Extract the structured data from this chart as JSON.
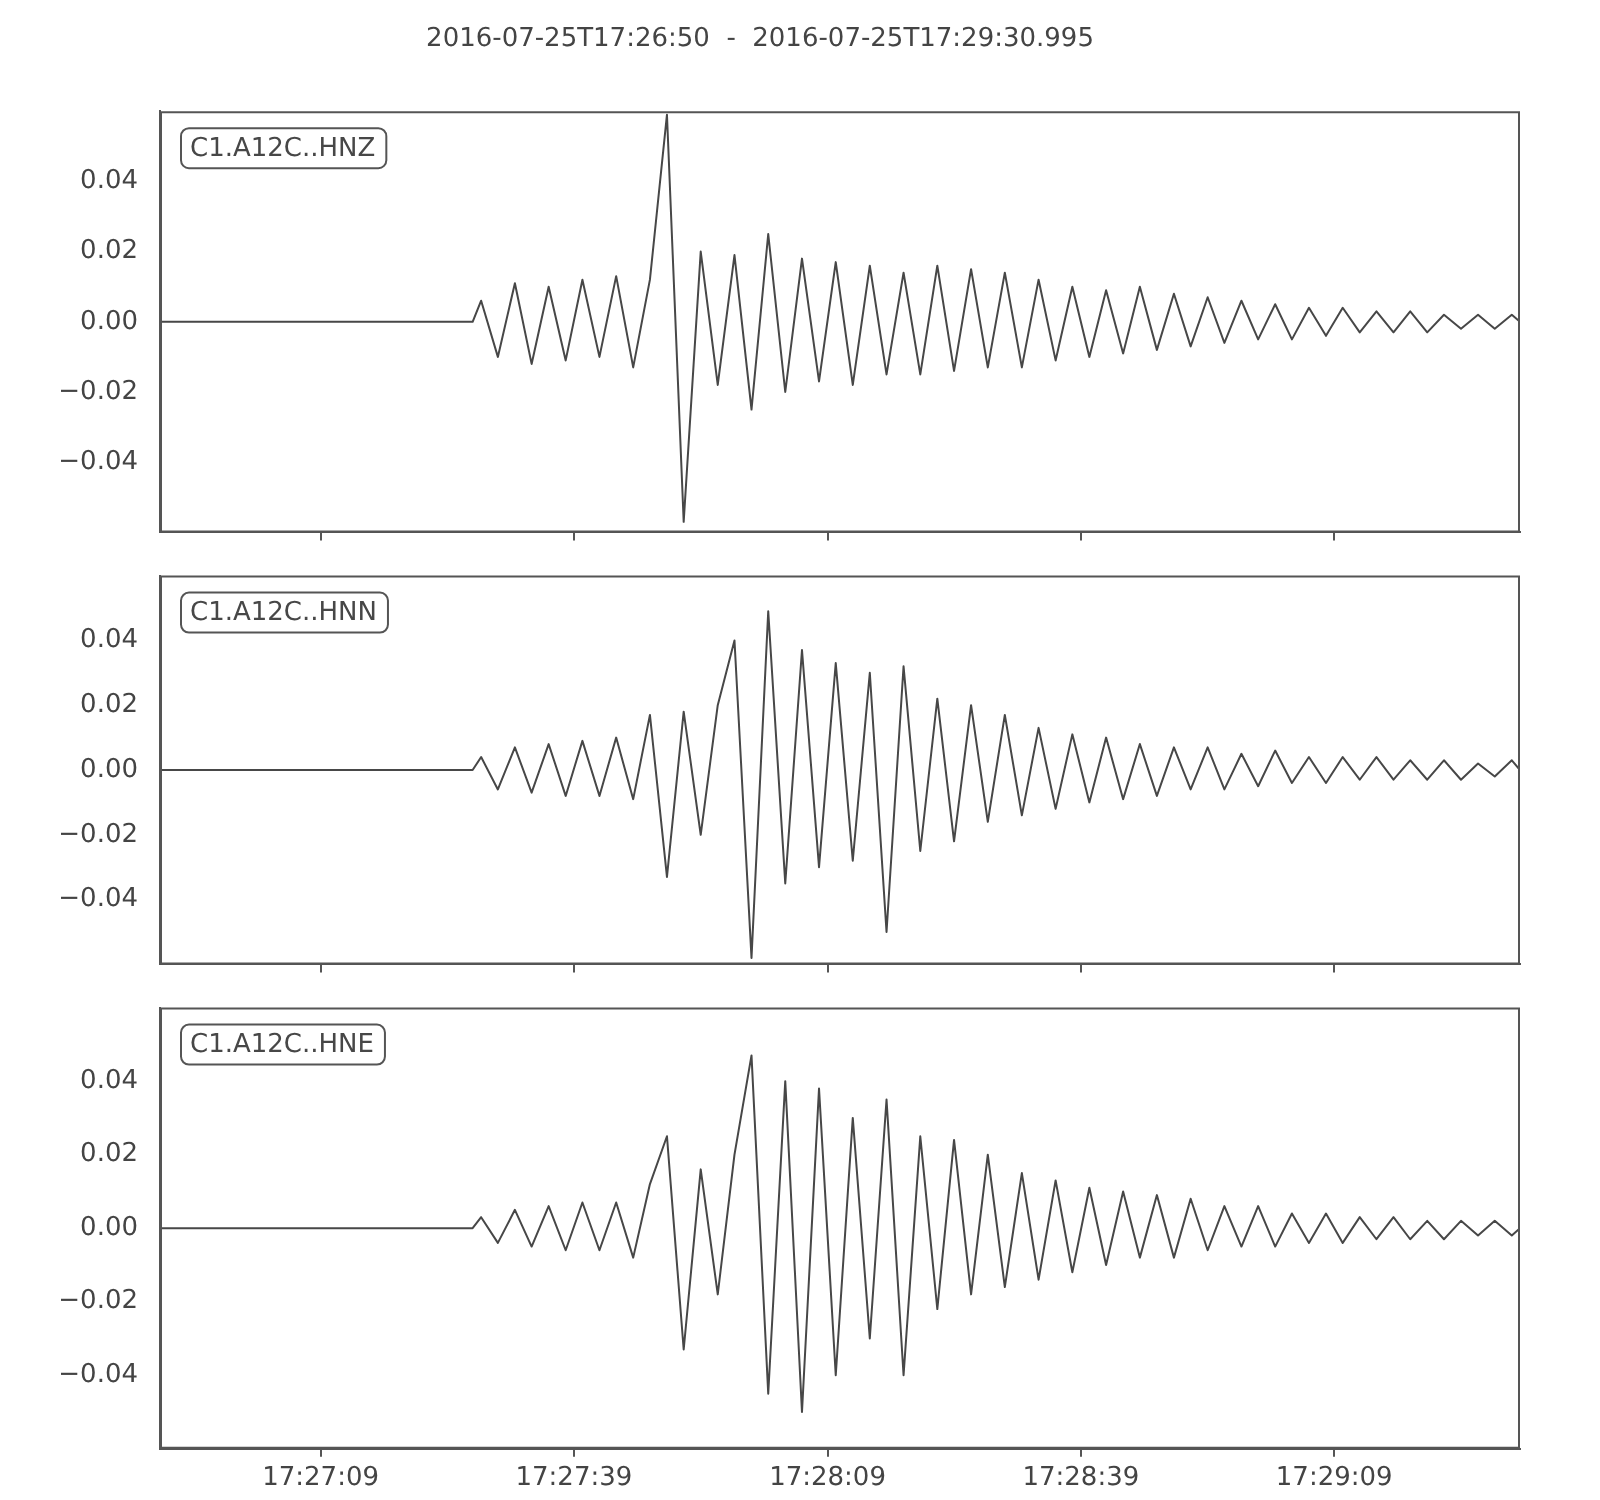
{
  "chart_data": [
    {
      "type": "line",
      "title": "2016-07-25T17:26:50  -  2016-07-25T17:29:30.995",
      "legend": "top left",
      "tick_labels": "y",
      "x": [
        17.44722,
        17.4575,
        17.45778,
        17.45833,
        17.45889,
        17.45944,
        17.46,
        17.46056,
        17.46111,
        17.46167,
        17.46222,
        17.46278,
        17.46333,
        17.46389,
        17.46444,
        17.465,
        17.46556,
        17.46611,
        17.46667,
        17.46722,
        17.46778,
        17.46833,
        17.46889,
        17.46944,
        17.47,
        17.47056,
        17.47111,
        17.47167,
        17.47222,
        17.47278,
        17.47333,
        17.47389,
        17.47444,
        17.475,
        17.47556,
        17.47611,
        17.47667,
        17.47722,
        17.47778,
        17.47833,
        17.47889,
        17.47944,
        17.48,
        17.48056,
        17.48111,
        17.48167,
        17.48222,
        17.48278,
        17.48333,
        17.48389,
        17.48444,
        17.485,
        17.48556,
        17.48611,
        17.48667,
        17.48722,
        17.48778,
        17.48833,
        17.48889,
        17.48944,
        17.49,
        17.49056,
        17.49111,
        17.49167,
        17.49194
      ],
      "xticks": [
        {
          "value": 17.4525,
          "label": null
        },
        {
          "value": 17.46083,
          "label": null
        },
        {
          "value": 17.46917,
          "label": null
        },
        {
          "value": 17.4775,
          "label": null
        },
        {
          "value": 17.48583,
          "label": null
        }
      ],
      "series": [
        {
          "name": "C1.A12C..HNZ",
          "color": "#474747",
          "values": [
            0,
            0,
            0.006,
            -0.01,
            0.011,
            -0.012,
            0.01,
            -0.011,
            0.012,
            -0.01,
            0.013,
            -0.013,
            0.012,
            0.059,
            -0.057,
            0.02,
            -0.018,
            0.019,
            -0.025,
            0.025,
            -0.02,
            0.018,
            -0.017,
            0.017,
            -0.018,
            0.016,
            -0.015,
            0.014,
            -0.015,
            0.016,
            -0.014,
            0.015,
            -0.013,
            0.014,
            -0.013,
            0.012,
            -0.011,
            0.01,
            -0.01,
            0.009,
            -0.009,
            0.01,
            -0.008,
            0.008,
            -0.007,
            0.007,
            -0.006,
            0.006,
            -0.005,
            0.005,
            -0.005,
            0.004,
            -0.004,
            0.004,
            -0.003,
            0.003,
            -0.003,
            0.003,
            -0.003,
            0.002,
            -0.002,
            0.002,
            -0.002,
            0.002,
            0
          ]
        }
      ],
      "xlim": [
        17.44722,
        17.49194
      ],
      "ylim": [
        -0.06,
        0.06
      ],
      "yticks": [
        {
          "value": -0.04,
          "label": "−0.04"
        },
        {
          "value": -0.02,
          "label": "−0.02"
        },
        {
          "value": 0,
          "label": "0.00"
        },
        {
          "value": 0.02,
          "label": "0.02"
        },
        {
          "value": 0.04,
          "label": "0.04"
        }
      ]
    },
    {
      "type": "line",
      "legend": "top left",
      "tick_labels": "y",
      "x": [
        17.44722,
        17.4575,
        17.45778,
        17.45833,
        17.45889,
        17.45944,
        17.46,
        17.46056,
        17.46111,
        17.46167,
        17.46222,
        17.46278,
        17.46333,
        17.46389,
        17.46444,
        17.465,
        17.46556,
        17.46611,
        17.46667,
        17.46722,
        17.46778,
        17.46833,
        17.46889,
        17.46944,
        17.47,
        17.47056,
        17.47111,
        17.47167,
        17.47222,
        17.47278,
        17.47333,
        17.47389,
        17.47444,
        17.475,
        17.47556,
        17.47611,
        17.47667,
        17.47722,
        17.47778,
        17.47833,
        17.47889,
        17.47944,
        17.48,
        17.48056,
        17.48111,
        17.48167,
        17.48222,
        17.48278,
        17.48333,
        17.48389,
        17.48444,
        17.485,
        17.48556,
        17.48611,
        17.48667,
        17.48722,
        17.48778,
        17.48833,
        17.48889,
        17.48944,
        17.49,
        17.49056,
        17.49111,
        17.49167,
        17.49194
      ],
      "xticks": [
        {
          "value": 17.4525,
          "label": null
        },
        {
          "value": 17.46083,
          "label": null
        },
        {
          "value": 17.46917,
          "label": null
        },
        {
          "value": 17.4775,
          "label": null
        },
        {
          "value": 17.48583,
          "label": null
        }
      ],
      "series": [
        {
          "name": "C1.A12C..HNN",
          "color": "#474747",
          "values": [
            0,
            0,
            0.004,
            -0.006,
            0.007,
            -0.007,
            0.008,
            -0.008,
            0.009,
            -0.008,
            0.01,
            -0.009,
            0.017,
            -0.033,
            0.018,
            -0.02,
            0.02,
            0.04,
            -0.058,
            0.049,
            -0.035,
            0.037,
            -0.03,
            0.033,
            -0.028,
            0.03,
            -0.05,
            0.032,
            -0.025,
            0.022,
            -0.022,
            0.02,
            -0.016,
            0.017,
            -0.014,
            0.013,
            -0.012,
            0.011,
            -0.01,
            0.01,
            -0.009,
            0.008,
            -0.008,
            0.007,
            -0.006,
            0.007,
            -0.006,
            0.005,
            -0.005,
            0.006,
            -0.004,
            0.004,
            -0.004,
            0.004,
            -0.003,
            0.004,
            -0.003,
            0.003,
            -0.003,
            0.003,
            -0.003,
            0.002,
            -0.002,
            0.003,
            0
          ]
        }
      ],
      "xlim": [
        17.44722,
        17.49194
      ],
      "ylim": [
        -0.06,
        0.06
      ],
      "yticks": [
        {
          "value": -0.04,
          "label": "−0.04"
        },
        {
          "value": -0.02,
          "label": "−0.02"
        },
        {
          "value": 0,
          "label": "0.00"
        },
        {
          "value": 0.02,
          "label": "0.02"
        },
        {
          "value": 0.04,
          "label": "0.04"
        }
      ]
    },
    {
      "type": "line",
      "legend": "top left",
      "x": [
        17.44722,
        17.4575,
        17.45778,
        17.45833,
        17.45889,
        17.45944,
        17.46,
        17.46056,
        17.46111,
        17.46167,
        17.46222,
        17.46278,
        17.46333,
        17.46389,
        17.46444,
        17.465,
        17.46556,
        17.46611,
        17.46667,
        17.46722,
        17.46778,
        17.46833,
        17.46889,
        17.46944,
        17.47,
        17.47056,
        17.47111,
        17.47167,
        17.47222,
        17.47278,
        17.47333,
        17.47389,
        17.47444,
        17.475,
        17.47556,
        17.47611,
        17.47667,
        17.47722,
        17.47778,
        17.47833,
        17.47889,
        17.47944,
        17.48,
        17.48056,
        17.48111,
        17.48167,
        17.48222,
        17.48278,
        17.48333,
        17.48389,
        17.48444,
        17.485,
        17.48556,
        17.48611,
        17.48667,
        17.48722,
        17.48778,
        17.48833,
        17.48889,
        17.48944,
        17.49,
        17.49056,
        17.49111,
        17.49167,
        17.49194
      ],
      "series": [
        {
          "name": "C1.A12C..HNE",
          "color": "#474747",
          "values": [
            0,
            0,
            0.003,
            -0.004,
            0.005,
            -0.005,
            0.006,
            -0.006,
            0.007,
            -0.006,
            0.007,
            -0.008,
            0.012,
            0.025,
            -0.033,
            0.016,
            -0.018,
            0.02,
            0.047,
            -0.045,
            0.04,
            -0.05,
            0.038,
            -0.04,
            0.03,
            -0.03,
            0.035,
            -0.04,
            0.025,
            -0.022,
            0.024,
            -0.018,
            0.02,
            -0.016,
            0.015,
            -0.014,
            0.013,
            -0.012,
            0.011,
            -0.01,
            0.01,
            -0.008,
            0.009,
            -0.008,
            0.008,
            -0.006,
            0.006,
            -0.005,
            0.006,
            -0.005,
            0.004,
            -0.004,
            0.004,
            -0.004,
            0.003,
            -0.003,
            0.003,
            -0.003,
            0.002,
            -0.003,
            0.002,
            -0.002,
            0.002,
            -0.002,
            0
          ]
        }
      ],
      "xlim": [
        17.44722,
        17.49194
      ],
      "xticks": [
        {
          "value": 17.4525,
          "label": "17:27:09"
        },
        {
          "value": 17.46083,
          "label": "17:27:39"
        },
        {
          "value": 17.46917,
          "label": "17:28:09"
        },
        {
          "value": 17.4775,
          "label": "17:28:39"
        },
        {
          "value": 17.48583,
          "label": "17:29:09"
        }
      ],
      "ylim": [
        -0.06,
        0.06
      ],
      "yticks": [
        {
          "value": -0.04,
          "label": "−0.04"
        },
        {
          "value": -0.02,
          "label": "−0.02"
        },
        {
          "value": 0,
          "label": "0.00"
        },
        {
          "value": 0.02,
          "label": "0.02"
        },
        {
          "value": 0.04,
          "label": "0.04"
        }
      ]
    }
  ]
}
